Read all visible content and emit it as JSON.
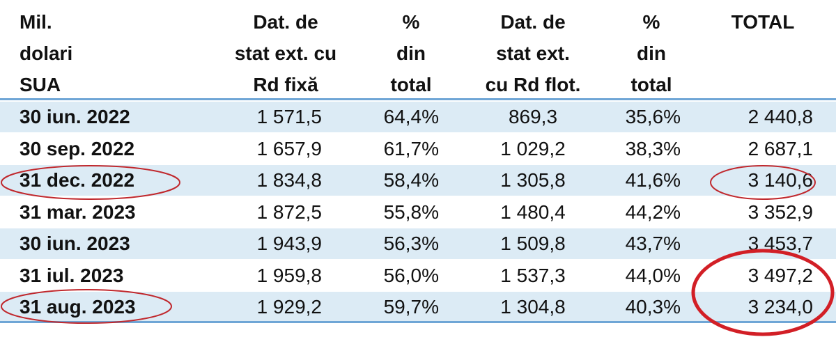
{
  "table": {
    "header": [
      [
        "Mil.",
        "dolari",
        "SUA"
      ],
      [
        "Dat. de",
        "stat ext. cu",
        "Rd fixă"
      ],
      [
        "%",
        "din",
        "total"
      ],
      [
        "Dat. de",
        "stat ext.",
        "cu Rd flot."
      ],
      [
        "%",
        "din",
        "total"
      ],
      [
        "TOTAL"
      ]
    ],
    "rows": [
      [
        "30 iun. 2022",
        "1 571,5",
        "64,4%",
        "869,3",
        "35,6%",
        "2 440,8"
      ],
      [
        "30 sep. 2022",
        "1 657,9",
        "61,7%",
        "1 029,2",
        "38,3%",
        "2 687,1"
      ],
      [
        "31 dec. 2022",
        "1 834,8",
        "58,4%",
        "1 305,8",
        "41,6%",
        "3 140,6"
      ],
      [
        "31 mar. 2023",
        "1 872,5",
        "55,8%",
        "1 480,4",
        "44,2%",
        "3 352,9"
      ],
      [
        "30 iun. 2023",
        "1 943,9",
        "56,3%",
        "1 509,8",
        "43,7%",
        "3 453,7"
      ],
      [
        "31 iul. 2023",
        "1 959,8",
        "56,0%",
        "1 537,3",
        "44,0%",
        "3 497,2"
      ],
      [
        "31 aug. 2023",
        "1 929,2",
        "59,7%",
        "1 304,8",
        "40,3%",
        "3 234,0"
      ]
    ]
  }
}
